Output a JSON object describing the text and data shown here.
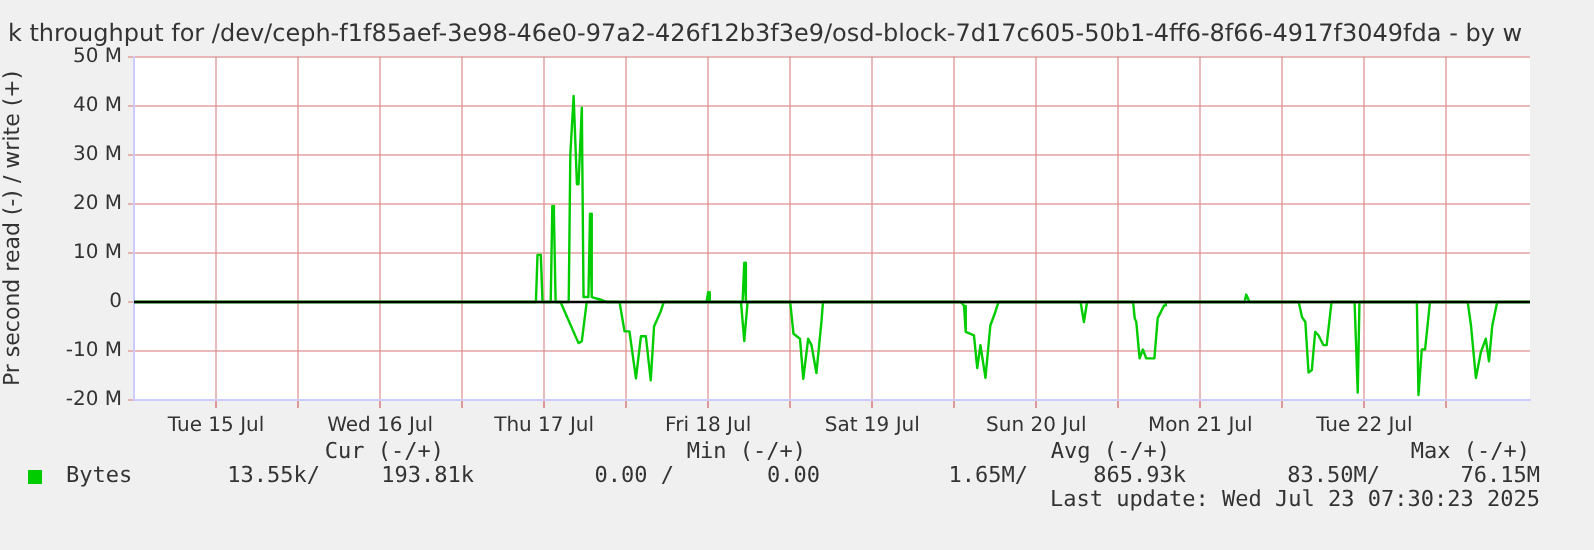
{
  "chart_data": {
    "type": "line",
    "title": "k throughput for /dev/ceph-f1f85aef-3e98-46e0-97a2-426f12b3f3e9/osd-block-7d17c605-50b1-4ff6-8f66-4917f3049fda - by w",
    "ylabel": "Pr second read (-) / write (+)",
    "xlim": [
      "2025-07-15T00:00",
      "2025-07-23T12:14"
    ],
    "xticks": [
      {
        "value": "2025-07-15T12:00",
        "label": "Tue 15 Jul"
      },
      {
        "value": "2025-07-16T00:00",
        "label": null
      },
      {
        "value": "2025-07-16T12:00",
        "label": "Wed 16 Jul"
      },
      {
        "value": "2025-07-17T00:00",
        "label": null
      },
      {
        "value": "2025-07-17T12:00",
        "label": "Thu 17 Jul"
      },
      {
        "value": "2025-07-18T00:00",
        "label": null
      },
      {
        "value": "2025-07-18T12:00",
        "label": "Fri 18 Jul"
      },
      {
        "value": "2025-07-19T00:00",
        "label": null
      },
      {
        "value": "2025-07-19T12:00",
        "label": "Sat 19 Jul"
      },
      {
        "value": "2025-07-20T00:00",
        "label": null
      },
      {
        "value": "2025-07-20T12:00",
        "label": "Sun 20 Jul"
      },
      {
        "value": "2025-07-21T00:00",
        "label": null
      },
      {
        "value": "2025-07-21T12:00",
        "label": "Mon 21 Jul"
      },
      {
        "value": "2025-07-22T00:00",
        "label": null
      },
      {
        "value": "2025-07-22T12:00",
        "label": "Tue 22 Jul"
      },
      {
        "value": "2025-07-23T00:00",
        "label": null
      }
    ],
    "ylim": [
      -20,
      50
    ],
    "yticks": [
      {
        "value": -20,
        "label": "-20 M"
      },
      {
        "value": -10,
        "label": "-10 M"
      },
      0,
      {
        "value": 10,
        "label": "10 M"
      },
      {
        "value": 20,
        "label": "20 M"
      },
      {
        "value": 30,
        "label": "30 M"
      },
      {
        "value": 40,
        "label": "40 M"
      },
      {
        "value": 50,
        "label": "50 M"
      }
    ],
    "grid": true,
    "legend": "bottom",
    "marker": "none",
    "line_style": "solid",
    "ref_lines": [
      {
        "axis": "y",
        "value": 0,
        "color": "#000000"
      }
    ],
    "series": [
      {
        "name": "Bytes",
        "color": "#00cc00",
        "x": [
          "2025-07-15T00:00",
          "2025-07-17T10:48",
          "2025-07-17T11:02",
          "2025-07-17T11:31",
          "2025-07-17T11:46",
          "2025-07-17T12:58",
          "2025-07-17T13:12",
          "2025-07-17T13:26",
          "2025-07-17T13:41",
          "2025-07-17T15:36",
          "2025-07-17T15:50",
          "2025-07-17T16:19",
          "2025-07-17T16:48",
          "2025-07-17T17:02",
          "2025-07-17T17:31",
          "2025-07-17T17:46",
          "2025-07-17T18:29",
          "2025-07-17T18:43",
          "2025-07-17T18:58",
          "2025-07-17T20:10",
          "2025-07-17T21:07",
          "2025-07-18T11:46",
          "2025-07-18T12:00",
          "2025-07-18T12:14",
          "2025-07-18T17:02",
          "2025-07-18T17:17",
          "2025-07-18T17:31",
          "2025-07-21T18:29",
          "2025-07-21T18:43",
          "2025-07-21T19:12",
          "2025-07-23T12:14"
        ],
        "values": [
          0,
          0,
          9.6,
          9.6,
          0,
          0,
          19.6,
          18,
          0,
          0,
          30,
          42,
          24,
          24,
          39.6,
          1,
          1,
          18,
          1,
          0.5,
          0,
          0,
          2,
          0,
          0,
          8,
          0,
          0,
          1.5,
          0,
          0
        ]
      },
      {
        "color": "#00cc00",
        "x": [
          "2025-07-15T00:00",
          "2025-07-17T14:24",
          "2025-07-17T17:02",
          "2025-07-17T17:31",
          "2025-07-17T18:14",
          "2025-07-17T23:02",
          "2025-07-17T23:46",
          "2025-07-18T00:29",
          "2025-07-18T01:26",
          "2025-07-18T02:10",
          "2025-07-18T02:53",
          "2025-07-18T03:36",
          "2025-07-18T04:05",
          "2025-07-18T05:02",
          "2025-07-18T05:31",
          "2025-07-18T16:48",
          "2025-07-18T17:17",
          "2025-07-18T17:46",
          "2025-07-19T00:00",
          "2025-07-19T00:29",
          "2025-07-19T01:26",
          "2025-07-19T01:55",
          "2025-07-19T02:38",
          "2025-07-19T03:07",
          "2025-07-19T03:50",
          "2025-07-19T04:34",
          "2025-07-19T04:48",
          "2025-07-20T00:58",
          "2025-07-20T01:26",
          "2025-07-20T01:41",
          "2025-07-20T02:53",
          "2025-07-20T03:22",
          "2025-07-20T03:50",
          "2025-07-20T04:34",
          "2025-07-20T05:17",
          "2025-07-20T06:00",
          "2025-07-20T06:29",
          "2025-07-20T18:29",
          "2025-07-20T18:58",
          "2025-07-20T19:26",
          "2025-07-21T02:10",
          "2025-07-21T02:24",
          "2025-07-21T02:38",
          "2025-07-21T03:07",
          "2025-07-21T03:36",
          "2025-07-21T04:05",
          "2025-07-21T05:17",
          "2025-07-21T05:46",
          "2025-07-21T06:43",
          "2025-07-21T06:58",
          "2025-07-22T02:24",
          "2025-07-22T02:53",
          "2025-07-22T03:22",
          "2025-07-22T03:50",
          "2025-07-22T04:19",
          "2025-07-22T04:48",
          "2025-07-22T05:17",
          "2025-07-22T06:00",
          "2025-07-22T06:29",
          "2025-07-22T07:12",
          "2025-07-22T10:34",
          "2025-07-22T11:02",
          "2025-07-22T11:17",
          "2025-07-22T19:41",
          "2025-07-22T19:55",
          "2025-07-22T20:24",
          "2025-07-22T20:53",
          "2025-07-22T21:36",
          "2025-07-23T03:07",
          "2025-07-23T03:36",
          "2025-07-23T04:19",
          "2025-07-23T05:02",
          "2025-07-23T05:46",
          "2025-07-23T06:14",
          "2025-07-23T06:43",
          "2025-07-23T07:26",
          "2025-07-23T12:14"
        ],
        "values": [
          0,
          0,
          -8.4,
          -8,
          0,
          0,
          -6,
          -6,
          -15.6,
          -7,
          -7,
          -16,
          -5,
          -2,
          0,
          0,
          -8,
          0,
          0,
          -6.5,
          -7.5,
          -15.7,
          -7.5,
          -8.8,
          -14.5,
          -4.1,
          0,
          0,
          -0.8,
          -6.1,
          -6.8,
          -13.5,
          -8.8,
          -15.5,
          -4.8,
          -2.1,
          0,
          0,
          -4.1,
          0,
          0,
          -3.3,
          -4.1,
          -11.5,
          -9.7,
          -11.5,
          -11.5,
          -3.3,
          -0.7,
          0,
          0,
          -3.1,
          -4.1,
          -14.4,
          -13.9,
          -6.1,
          -6.8,
          -8.8,
          -8.8,
          0,
          0,
          -18.5,
          0,
          0,
          -19,
          -9.7,
          -9.7,
          0,
          0,
          -4.8,
          -15.5,
          -10.3,
          -7.5,
          -12.1,
          -4.8,
          0,
          0
        ]
      }
    ],
    "annotations": [
      "Cur (-/+)",
      "Min (-/+)",
      "Avg (-/+)",
      "Max (-/+)",
      "13.55k/",
      "193.81k",
      "0.00 /",
      "0.00",
      "1.65M/",
      "865.93k",
      "83.50M/",
      "76.15M",
      "Last update: Wed Jul 23 07:30:23 2025"
    ]
  }
}
